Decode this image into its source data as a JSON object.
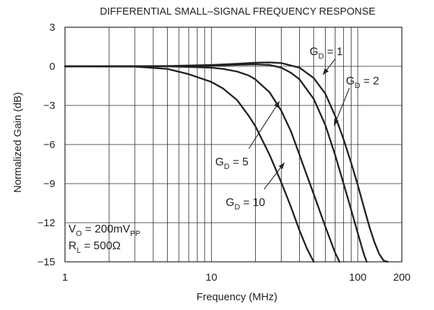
{
  "chart_data": {
    "type": "line",
    "title": "DIFFERENTIAL SMALL–SIGNAL FREQUENCY RESPONSE",
    "xlabel": "Frequency (MHz)",
    "ylabel": "Normalized Gain (dB)",
    "x_scale": "log",
    "xlim": [
      1,
      200
    ],
    "ylim": [
      -15,
      3
    ],
    "x_ticks": [
      1,
      10,
      100,
      200
    ],
    "x_tick_labels": [
      "1",
      "10",
      "100",
      "200"
    ],
    "y_ticks": [
      3,
      0,
      -3,
      -6,
      -9,
      -12,
      -15
    ],
    "y_tick_labels": [
      "3",
      "0",
      "−3",
      "−6",
      "−9",
      "−12",
      "−15"
    ],
    "grid": true,
    "series": [
      {
        "name": "GD = 1",
        "label": {
          "main": "G",
          "sub": "D",
          "rest": " = 1"
        },
        "x": [
          1,
          5,
          10,
          15,
          20,
          25,
          30,
          40,
          50,
          60,
          70,
          80,
          90,
          100,
          110,
          120,
          130,
          140,
          150,
          160
        ],
        "y": [
          0,
          0.02,
          0.1,
          0.2,
          0.28,
          0.3,
          0.25,
          -0.1,
          -0.9,
          -2.1,
          -3.8,
          -5.6,
          -7.4,
          -9.1,
          -10.8,
          -12.3,
          -13.5,
          -14.4,
          -14.9,
          -15
        ]
      },
      {
        "name": "GD = 2",
        "label": {
          "main": "G",
          "sub": "D",
          "rest": " = 2"
        },
        "x": [
          1,
          5,
          10,
          15,
          20,
          25,
          30,
          35,
          40,
          50,
          60,
          70,
          80,
          90,
          100,
          110,
          115
        ],
        "y": [
          0,
          0.01,
          0.05,
          0.12,
          0.15,
          0.1,
          -0.1,
          -0.5,
          -1.0,
          -2.5,
          -4.5,
          -6.8,
          -9.0,
          -11.0,
          -12.8,
          -14.4,
          -15
        ]
      },
      {
        "name": "GD = 5",
        "label": {
          "main": "G",
          "sub": "D",
          "rest": " = 5"
        },
        "x": [
          1,
          5,
          10,
          12,
          15,
          18,
          20,
          25,
          30,
          35,
          40,
          45,
          50,
          60,
          70,
          75
        ],
        "y": [
          0,
          0,
          -0.1,
          -0.2,
          -0.4,
          -0.7,
          -1.0,
          -2.0,
          -3.4,
          -5.0,
          -6.8,
          -8.4,
          -9.8,
          -12.3,
          -14.3,
          -15
        ]
      },
      {
        "name": "GD = 10",
        "label": {
          "main": "G",
          "sub": "D",
          "rest": " = 10"
        },
        "x": [
          1,
          3,
          5,
          7,
          10,
          12,
          15,
          18,
          20,
          25,
          30,
          35,
          40,
          45,
          50
        ],
        "y": [
          0,
          -0.02,
          -0.2,
          -0.6,
          -1.2,
          -1.7,
          -2.6,
          -3.8,
          -4.6,
          -6.8,
          -8.9,
          -10.8,
          -12.6,
          -14.0,
          -15
        ]
      }
    ],
    "conditions": [
      {
        "main": "V",
        "sub": "O",
        "rest": " = 200mV",
        "sub2": "PP"
      },
      {
        "main": "R",
        "sub": "L",
        "rest": " = 500Ω",
        "sub2": ""
      }
    ]
  }
}
